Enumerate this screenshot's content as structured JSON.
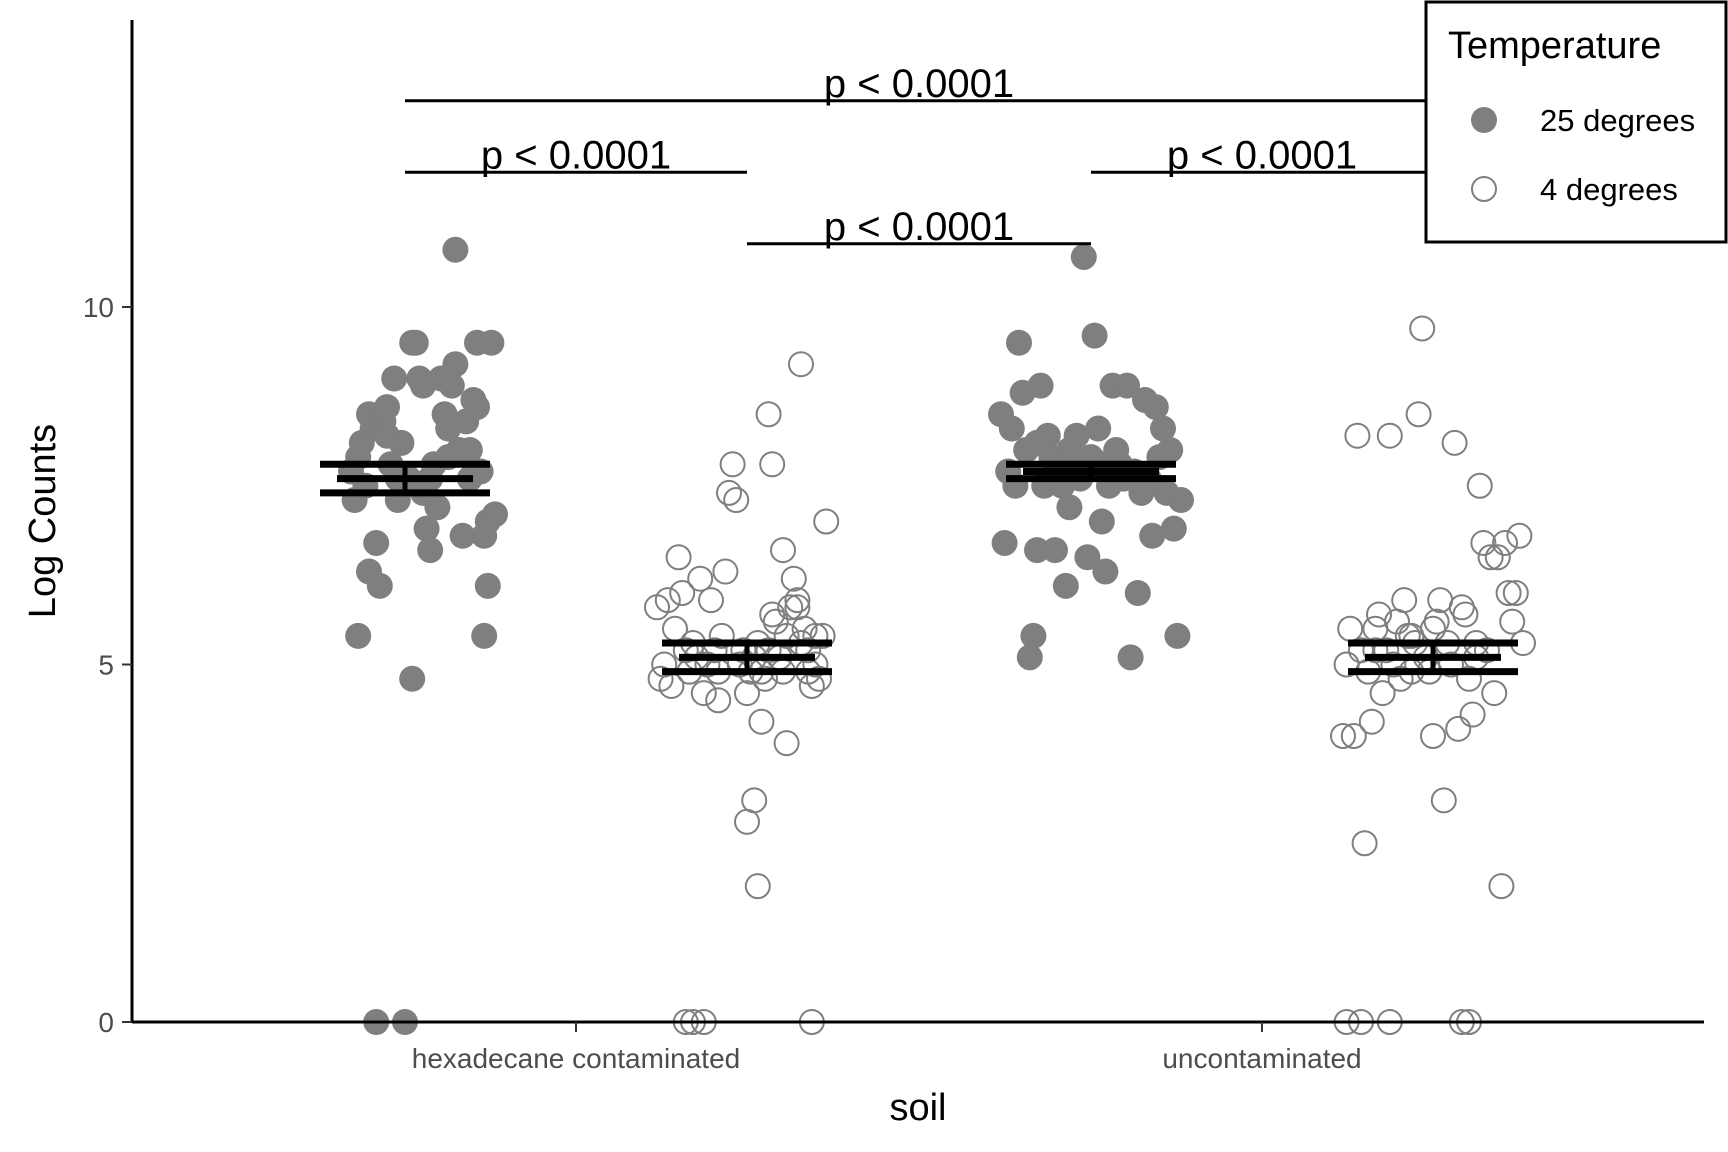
{
  "chart_data": {
    "type": "scatter",
    "xlabel": "soil",
    "ylabel": "Log Counts",
    "categories": [
      "hexadecane contaminated",
      "uncontaminated"
    ],
    "y_ticks": [
      "0",
      "5",
      "10"
    ],
    "ylim": [
      0,
      14
    ],
    "legend": {
      "title": "Temperature",
      "placement": "top-right",
      "entries": [
        "25 degrees",
        "4 degrees"
      ]
    },
    "colors": {
      "filled": "#7f7f7f",
      "open_stroke": "#7f7f7f",
      "bars": "#000000"
    },
    "series": [
      {
        "name": "25 degrees",
        "category": "hexadecane contaminated",
        "style": "filled",
        "mean": 7.6,
        "se_low": 7.4,
        "se_high": 7.8,
        "points": [
          [
            -0.15,
            7.7
          ],
          [
            -0.14,
            7.3
          ],
          [
            -0.13,
            7.9
          ],
          [
            -0.12,
            8.1
          ],
          [
            -0.11,
            7.5
          ],
          [
            -0.1,
            8.5
          ],
          [
            -0.09,
            8.3
          ],
          [
            -0.08,
            6.7
          ],
          [
            -0.1,
            6.3
          ],
          [
            -0.13,
            5.4
          ],
          [
            -0.08,
            0.0
          ],
          [
            -0.07,
            6.1
          ],
          [
            -0.06,
            8.4
          ],
          [
            -0.05,
            8.6
          ],
          [
            -0.04,
            7.8
          ],
          [
            -0.03,
            9.0
          ],
          [
            -0.02,
            7.3
          ],
          [
            -0.01,
            8.1
          ],
          [
            0.0,
            0.0
          ],
          [
            0.01,
            7.6
          ],
          [
            0.02,
            4.8
          ],
          [
            0.03,
            9.5
          ],
          [
            0.04,
            9.0
          ],
          [
            0.05,
            7.4
          ],
          [
            0.06,
            6.9
          ],
          [
            0.07,
            6.6
          ],
          [
            0.08,
            7.8
          ],
          [
            0.09,
            7.2
          ],
          [
            0.1,
            9.0
          ],
          [
            0.11,
            8.5
          ],
          [
            0.12,
            8.3
          ],
          [
            0.13,
            8.9
          ],
          [
            0.14,
            9.2
          ],
          [
            0.15,
            8.0
          ],
          [
            0.16,
            6.8
          ],
          [
            0.17,
            8.4
          ],
          [
            0.18,
            8.0
          ],
          [
            0.19,
            8.7
          ],
          [
            0.2,
            9.5
          ],
          [
            0.21,
            7.7
          ],
          [
            0.22,
            6.8
          ],
          [
            0.23,
            7.0
          ],
          [
            0.24,
            9.5
          ],
          [
            0.25,
            7.1
          ],
          [
            0.23,
            6.1
          ],
          [
            0.22,
            5.4
          ],
          [
            0.02,
            9.5
          ],
          [
            0.14,
            10.8
          ],
          [
            0.07,
            7.6
          ],
          [
            -0.02,
            7.6
          ],
          [
            0.12,
            7.9
          ],
          [
            0.18,
            7.6
          ],
          [
            0.2,
            8.6
          ],
          [
            0.05,
            8.9
          ],
          [
            -0.05,
            8.2
          ]
        ]
      },
      {
        "name": "4 degrees",
        "category": "hexadecane contaminated",
        "style": "open",
        "mean": 5.1,
        "se_low": 4.9,
        "se_high": 5.3,
        "points": [
          [
            -0.25,
            5.8
          ],
          [
            -0.24,
            4.8
          ],
          [
            -0.23,
            5.0
          ],
          [
            -0.22,
            5.9
          ],
          [
            -0.21,
            4.7
          ],
          [
            -0.2,
            5.5
          ],
          [
            -0.19,
            6.5
          ],
          [
            -0.18,
            6.0
          ],
          [
            -0.17,
            5.2
          ],
          [
            -0.16,
            4.9
          ],
          [
            -0.15,
            5.3
          ],
          [
            -0.14,
            5.1
          ],
          [
            -0.13,
            6.2
          ],
          [
            -0.12,
            4.6
          ],
          [
            -0.11,
            5.0
          ],
          [
            -0.1,
            5.9
          ],
          [
            -0.09,
            5.2
          ],
          [
            -0.08,
            4.9
          ],
          [
            -0.07,
            5.4
          ],
          [
            -0.06,
            6.3
          ],
          [
            -0.05,
            7.4
          ],
          [
            -0.04,
            7.8
          ],
          [
            -0.03,
            7.3
          ],
          [
            -0.02,
            5.0
          ],
          [
            -0.01,
            5.2
          ],
          [
            0.0,
            4.6
          ],
          [
            0.01,
            4.9
          ],
          [
            0.02,
            5.1
          ],
          [
            0.03,
            5.3
          ],
          [
            0.04,
            4.2
          ],
          [
            0.05,
            4.8
          ],
          [
            0.06,
            5.2
          ],
          [
            0.07,
            5.7
          ],
          [
            0.08,
            5.6
          ],
          [
            0.09,
            5.1
          ],
          [
            0.1,
            4.9
          ],
          [
            0.11,
            5.4
          ],
          [
            0.12,
            5.8
          ],
          [
            0.13,
            6.2
          ],
          [
            0.14,
            5.9
          ],
          [
            0.15,
            5.3
          ],
          [
            0.16,
            5.5
          ],
          [
            0.17,
            4.9
          ],
          [
            0.18,
            4.7
          ],
          [
            0.19,
            5.0
          ],
          [
            0.2,
            4.8
          ],
          [
            0.21,
            5.4
          ],
          [
            0.22,
            7.0
          ],
          [
            0.06,
            8.5
          ],
          [
            0.07,
            7.8
          ],
          [
            0.1,
            6.6
          ],
          [
            0.14,
            5.8
          ],
          [
            0.15,
            9.2
          ],
          [
            0.11,
            3.9
          ],
          [
            0.04,
            4.9
          ],
          [
            0.02,
            3.1
          ],
          [
            0.03,
            1.9
          ],
          [
            0.0,
            2.8
          ],
          [
            -0.17,
            0.0
          ],
          [
            -0.15,
            0.0
          ],
          [
            -0.12,
            0.0
          ],
          [
            0.18,
            0.0
          ],
          [
            -0.08,
            4.5
          ],
          [
            0.17,
            5.2
          ],
          [
            0.19,
            5.4
          ]
        ]
      },
      {
        "name": "25 degrees",
        "category": "uncontaminated",
        "style": "filled",
        "mean": 7.7,
        "se_low": 7.6,
        "se_high": 7.8,
        "points": [
          [
            -0.25,
            8.5
          ],
          [
            -0.24,
            6.7
          ],
          [
            -0.23,
            7.7
          ],
          [
            -0.22,
            8.3
          ],
          [
            -0.21,
            7.5
          ],
          [
            -0.2,
            9.5
          ],
          [
            -0.19,
            8.8
          ],
          [
            -0.18,
            8.0
          ],
          [
            -0.17,
            5.1
          ],
          [
            -0.16,
            5.4
          ],
          [
            -0.15,
            6.6
          ],
          [
            -0.14,
            8.9
          ],
          [
            -0.13,
            7.5
          ],
          [
            -0.12,
            8.2
          ],
          [
            -0.11,
            7.9
          ],
          [
            -0.1,
            6.6
          ],
          [
            -0.09,
            7.7
          ],
          [
            -0.08,
            7.5
          ],
          [
            -0.07,
            6.1
          ],
          [
            -0.06,
            8.0
          ],
          [
            -0.05,
            7.9
          ],
          [
            -0.04,
            8.2
          ],
          [
            -0.03,
            7.6
          ],
          [
            -0.02,
            10.7
          ],
          [
            -0.01,
            6.5
          ],
          [
            0.0,
            7.9
          ],
          [
            0.01,
            9.6
          ],
          [
            0.02,
            8.3
          ],
          [
            0.03,
            7.8
          ],
          [
            0.04,
            6.3
          ],
          [
            0.05,
            7.5
          ],
          [
            0.06,
            8.9
          ],
          [
            0.07,
            8.0
          ],
          [
            0.08,
            7.7
          ],
          [
            0.09,
            7.6
          ],
          [
            0.1,
            8.9
          ],
          [
            0.11,
            5.1
          ],
          [
            0.12,
            7.7
          ],
          [
            0.13,
            6.0
          ],
          [
            0.14,
            7.4
          ],
          [
            0.15,
            8.7
          ],
          [
            0.16,
            7.6
          ],
          [
            0.17,
            6.8
          ],
          [
            0.18,
            8.6
          ],
          [
            0.19,
            7.9
          ],
          [
            0.2,
            8.3
          ],
          [
            0.21,
            7.4
          ],
          [
            0.22,
            8.0
          ],
          [
            0.23,
            6.9
          ],
          [
            0.24,
            5.4
          ],
          [
            0.25,
            7.3
          ],
          [
            -0.06,
            7.2
          ],
          [
            0.03,
            7.0
          ],
          [
            -0.15,
            8.1
          ],
          [
            0.08,
            7.8
          ]
        ]
      },
      {
        "name": "4 degrees",
        "category": "uncontaminated",
        "style": "open",
        "mean": 5.1,
        "se_low": 4.9,
        "se_high": 5.3,
        "points": [
          [
            -0.25,
            4.0
          ],
          [
            -0.24,
            5.0
          ],
          [
            -0.23,
            5.5
          ],
          [
            -0.22,
            4.0
          ],
          [
            -0.21,
            8.2
          ],
          [
            -0.2,
            5.2
          ],
          [
            -0.19,
            2.5
          ],
          [
            -0.18,
            4.9
          ],
          [
            -0.17,
            4.2
          ],
          [
            -0.16,
            5.5
          ],
          [
            -0.15,
            5.7
          ],
          [
            -0.14,
            4.6
          ],
          [
            -0.13,
            5.2
          ],
          [
            -0.12,
            8.2
          ],
          [
            -0.11,
            5.0
          ],
          [
            -0.1,
            5.6
          ],
          [
            -0.09,
            4.8
          ],
          [
            -0.08,
            5.9
          ],
          [
            -0.07,
            5.4
          ],
          [
            -0.06,
            4.9
          ],
          [
            -0.05,
            5.3
          ],
          [
            -0.04,
            8.5
          ],
          [
            -0.03,
            9.7
          ],
          [
            -0.02,
            5.1
          ],
          [
            -0.01,
            4.9
          ],
          [
            0.0,
            4.0
          ],
          [
            0.01,
            5.6
          ],
          [
            0.02,
            5.9
          ],
          [
            0.03,
            3.1
          ],
          [
            0.04,
            5.3
          ],
          [
            0.05,
            5.0
          ],
          [
            0.06,
            8.1
          ],
          [
            0.07,
            4.1
          ],
          [
            0.08,
            5.8
          ],
          [
            0.09,
            5.7
          ],
          [
            0.1,
            4.8
          ],
          [
            0.11,
            4.3
          ],
          [
            0.12,
            5.1
          ],
          [
            0.13,
            7.5
          ],
          [
            0.14,
            6.7
          ],
          [
            0.15,
            5.2
          ],
          [
            0.16,
            6.5
          ],
          [
            0.17,
            4.6
          ],
          [
            0.18,
            6.5
          ],
          [
            0.19,
            1.9
          ],
          [
            0.2,
            6.7
          ],
          [
            0.21,
            6.0
          ],
          [
            0.22,
            5.6
          ],
          [
            0.23,
            6.0
          ],
          [
            0.24,
            6.8
          ],
          [
            0.25,
            5.3
          ],
          [
            -0.24,
            0.0
          ],
          [
            -0.2,
            0.0
          ],
          [
            -0.12,
            0.0
          ],
          [
            0.08,
            0.0
          ],
          [
            0.1,
            0.0
          ],
          [
            -0.06,
            5.4
          ],
          [
            0.0,
            5.5
          ],
          [
            0.12,
            5.3
          ],
          [
            -0.16,
            5.2
          ]
        ]
      }
    ],
    "annotations": [
      {
        "label": "p < 0.0001",
        "x1": "hexadecane contaminated:25",
        "x2": "uncontaminated:4",
        "y": 12.8
      },
      {
        "label": "p < 0.0001",
        "x1": "hexadecane contaminated:25",
        "x2": "hexadecane contaminated:4",
        "y": 11.8
      },
      {
        "label": "p < 0.0001",
        "x1": "uncontaminated:25",
        "x2": "uncontaminated:4",
        "y": 11.8
      },
      {
        "label": "p < 0.0001",
        "x1": "hexadecane contaminated:4",
        "x2": "uncontaminated:25",
        "y": 10.8
      }
    ]
  }
}
